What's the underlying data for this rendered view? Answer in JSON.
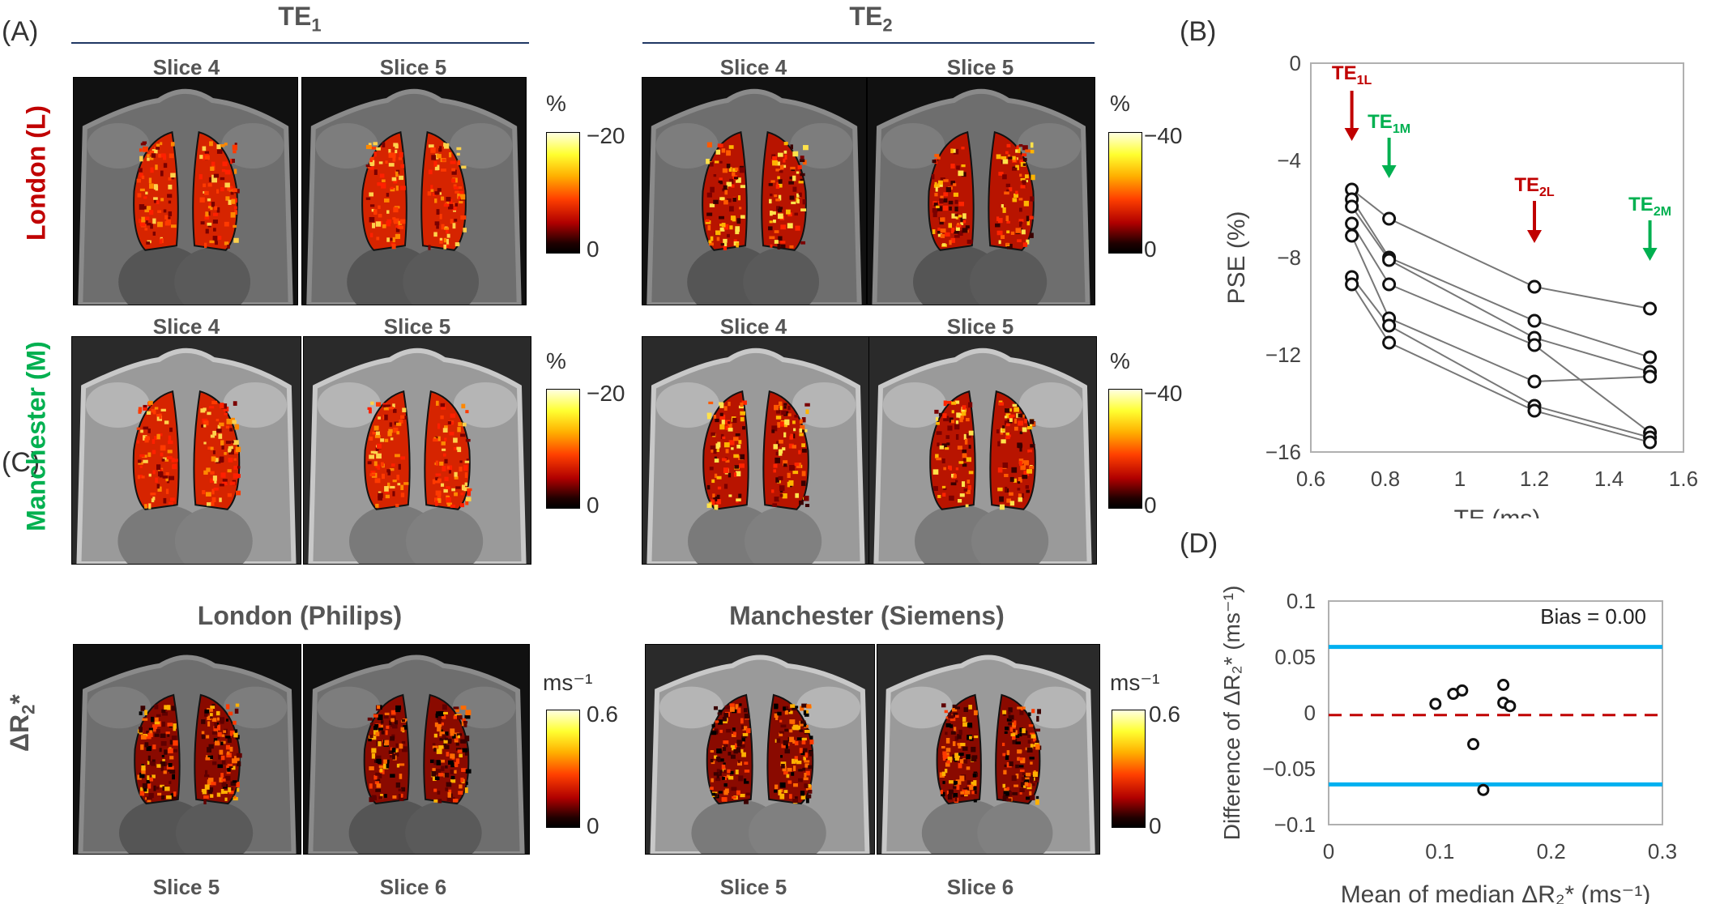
{
  "panels": {
    "a": "(A)",
    "b": "(B)",
    "c": "(C)",
    "d": "(D)"
  },
  "te_headers": {
    "te1_base": "TE",
    "te1_sub": "1",
    "te2_base": "TE",
    "te2_sub": "2"
  },
  "sites": {
    "london": "London (L)",
    "manchester": "Manchester (M)",
    "london_color": "#c00000",
    "manchester_color": "#00b050"
  },
  "panel_a": {
    "slice_labels": {
      "s4": "Slice 4",
      "s5": "Slice 5"
    },
    "colorbar_te1": {
      "unit": "%",
      "top": "−20",
      "bottom": "0"
    },
    "colorbar_te2": {
      "unit": "%",
      "top": "−40",
      "bottom": "0"
    }
  },
  "panel_c": {
    "london_title": "London (Philips)",
    "manchester_title": "Manchester (Siemens)",
    "row_label_base": "ΔR",
    "row_label_sub": "2",
    "row_label_suffix": "*",
    "slice_labels": {
      "s5": "Slice 5",
      "s6": "Slice 6"
    },
    "colorbar": {
      "unit": "ms⁻¹",
      "top": "0.6",
      "bottom": "0"
    }
  },
  "chart_b_text": {
    "ylabel": "PSE (%)",
    "xlabel": "TE (ms)",
    "arrows": [
      {
        "base": "TE",
        "sub": "1L",
        "color": "#c00000"
      },
      {
        "base": "TE",
        "sub": "1M",
        "color": "#00b050"
      },
      {
        "base": "TE",
        "sub": "2L",
        "color": "#c00000"
      },
      {
        "base": "TE",
        "sub": "2M",
        "color": "#00b050"
      }
    ]
  },
  "chart_d_text": {
    "ylabel": "Difference of ΔR₂* (ms⁻¹)",
    "xlabel": "Mean of median ΔR₂* (ms⁻¹)",
    "bias": "Bias = 0.00"
  },
  "chart_data": [
    {
      "type": "line",
      "xlim": [
        0.6,
        1.6
      ],
      "ylim": [
        -16,
        0
      ],
      "xticks": [
        0.6,
        0.8,
        1.0,
        1.2,
        1.4,
        1.6
      ],
      "xtick_labels": [
        "0.6",
        "0.8",
        "1",
        "1.2",
        "1.4",
        "1.6"
      ],
      "yticks": [
        0,
        -4,
        -8,
        -12,
        -16
      ],
      "ytick_labels": [
        "0",
        "−4",
        "−8",
        "−12",
        "−16"
      ],
      "grid": false,
      "series": [
        {
          "x": [
            0.71,
            0.81,
            1.2,
            1.51
          ],
          "values": [
            -5.2,
            -6.4,
            -9.2,
            -10.1
          ]
        },
        {
          "x": [
            0.71,
            0.81,
            1.2,
            1.51
          ],
          "values": [
            -5.6,
            -8.0,
            -10.6,
            -12.1
          ]
        },
        {
          "x": [
            0.71,
            0.81,
            1.2,
            1.51
          ],
          "values": [
            -5.9,
            -8.1,
            -11.3,
            -12.7
          ]
        },
        {
          "x": [
            0.71,
            0.81,
            1.2,
            1.51
          ],
          "values": [
            -6.6,
            -9.1,
            -11.6,
            -15.2
          ]
        },
        {
          "x": [
            0.71,
            0.81,
            1.2,
            1.51
          ],
          "values": [
            -7.1,
            -10.5,
            -13.1,
            -12.9
          ]
        },
        {
          "x": [
            0.71,
            0.81,
            1.2,
            1.51
          ],
          "values": [
            -8.8,
            -10.8,
            -14.1,
            -15.4
          ]
        },
        {
          "x": [
            0.71,
            0.81,
            1.2,
            1.51
          ],
          "values": [
            -9.1,
            -11.5,
            -14.3,
            -15.6
          ]
        }
      ],
      "arrow_positions_x": [
        0.71,
        0.81,
        1.2,
        1.51
      ]
    },
    {
      "type": "scatter",
      "xlim": [
        0,
        0.3
      ],
      "ylim": [
        -0.1,
        0.1
      ],
      "xticks": [
        0,
        0.1,
        0.2,
        0.3
      ],
      "xtick_labels": [
        "0",
        "0.1",
        "0.2",
        "0.3"
      ],
      "yticks": [
        0.1,
        0.05,
        0,
        -0.05,
        -0.1
      ],
      "ytick_labels": [
        "0.1",
        "0.05",
        "0",
        "−0.05",
        "−0.1"
      ],
      "points": [
        {
          "x": 0.096,
          "y": 0.008
        },
        {
          "x": 0.112,
          "y": 0.017
        },
        {
          "x": 0.12,
          "y": 0.02
        },
        {
          "x": 0.13,
          "y": -0.028
        },
        {
          "x": 0.139,
          "y": -0.069
        },
        {
          "x": 0.157,
          "y": 0.025
        },
        {
          "x": 0.157,
          "y": 0.009
        },
        {
          "x": 0.163,
          "y": 0.006
        }
      ],
      "bias": -0.002,
      "upper_loa": 0.059,
      "lower_loa": -0.064,
      "loa_color": "#00b0f0",
      "bias_color": "#c00000"
    }
  ]
}
